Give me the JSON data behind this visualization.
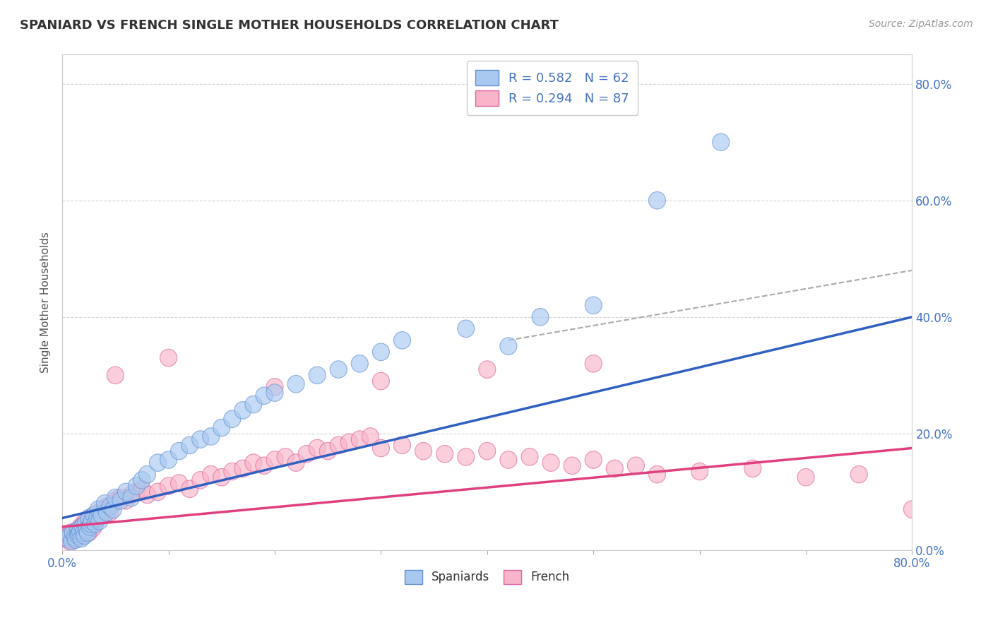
{
  "title": "SPANIARD VS FRENCH SINGLE MOTHER HOUSEHOLDS CORRELATION CHART",
  "source_text": "Source: ZipAtlas.com",
  "ylabel": "Single Mother Households",
  "xlim": [
    0.0,
    0.8
  ],
  "ylim": [
    0.0,
    0.85
  ],
  "spaniards_color": "#A8C8F0",
  "french_color": "#F8B4C8",
  "spaniards_edge_color": "#6090D0",
  "french_edge_color": "#E060A0",
  "spaniards_line_color": "#3060C0",
  "french_line_color": "#E04080",
  "dashed_line_color": "#AAAAAA",
  "legend_R_spaniards": "R = 0.582",
  "legend_N_spaniards": "N = 62",
  "legend_R_french": "R = 0.294",
  "legend_N_french": "N = 87",
  "background_color": "#FFFFFF",
  "grid_color": "#CCCCCC",
  "spaniards_x": [
    0.005,
    0.007,
    0.009,
    0.01,
    0.012,
    0.013,
    0.015,
    0.015,
    0.016,
    0.017,
    0.018,
    0.019,
    0.02,
    0.021,
    0.022,
    0.023,
    0.024,
    0.025,
    0.026,
    0.027,
    0.028,
    0.03,
    0.031,
    0.033,
    0.034,
    0.035,
    0.037,
    0.04,
    0.042,
    0.045,
    0.048,
    0.05,
    0.055,
    0.06,
    0.065,
    0.07,
    0.075,
    0.08,
    0.09,
    0.1,
    0.11,
    0.12,
    0.13,
    0.14,
    0.15,
    0.16,
    0.17,
    0.18,
    0.19,
    0.2,
    0.22,
    0.24,
    0.26,
    0.28,
    0.3,
    0.32,
    0.38,
    0.42,
    0.45,
    0.5,
    0.56,
    0.62
  ],
  "spaniards_y": [
    0.02,
    0.025,
    0.015,
    0.03,
    0.022,
    0.018,
    0.035,
    0.025,
    0.028,
    0.032,
    0.02,
    0.04,
    0.03,
    0.025,
    0.045,
    0.035,
    0.03,
    0.055,
    0.04,
    0.045,
    0.05,
    0.06,
    0.045,
    0.055,
    0.07,
    0.05,
    0.06,
    0.08,
    0.065,
    0.075,
    0.07,
    0.09,
    0.085,
    0.1,
    0.09,
    0.11,
    0.12,
    0.13,
    0.15,
    0.155,
    0.17,
    0.18,
    0.19,
    0.195,
    0.21,
    0.225,
    0.24,
    0.25,
    0.265,
    0.27,
    0.285,
    0.3,
    0.31,
    0.32,
    0.34,
    0.36,
    0.38,
    0.35,
    0.4,
    0.42,
    0.6,
    0.7
  ],
  "french_x": [
    0.003,
    0.005,
    0.007,
    0.008,
    0.009,
    0.01,
    0.011,
    0.012,
    0.013,
    0.014,
    0.015,
    0.016,
    0.017,
    0.018,
    0.019,
    0.02,
    0.021,
    0.022,
    0.023,
    0.024,
    0.025,
    0.026,
    0.027,
    0.028,
    0.029,
    0.03,
    0.032,
    0.034,
    0.035,
    0.037,
    0.04,
    0.042,
    0.045,
    0.048,
    0.05,
    0.055,
    0.06,
    0.065,
    0.07,
    0.075,
    0.08,
    0.09,
    0.1,
    0.11,
    0.12,
    0.13,
    0.14,
    0.15,
    0.16,
    0.17,
    0.18,
    0.19,
    0.2,
    0.21,
    0.22,
    0.23,
    0.24,
    0.25,
    0.26,
    0.27,
    0.28,
    0.29,
    0.3,
    0.32,
    0.34,
    0.36,
    0.38,
    0.4,
    0.42,
    0.44,
    0.46,
    0.48,
    0.5,
    0.52,
    0.54,
    0.56,
    0.6,
    0.65,
    0.7,
    0.75,
    0.8,
    0.05,
    0.1,
    0.2,
    0.3,
    0.4,
    0.5
  ],
  "french_y": [
    0.02,
    0.025,
    0.015,
    0.03,
    0.018,
    0.022,
    0.028,
    0.025,
    0.032,
    0.02,
    0.035,
    0.028,
    0.04,
    0.03,
    0.025,
    0.045,
    0.035,
    0.05,
    0.04,
    0.045,
    0.03,
    0.055,
    0.042,
    0.048,
    0.038,
    0.06,
    0.05,
    0.055,
    0.065,
    0.06,
    0.07,
    0.075,
    0.065,
    0.08,
    0.085,
    0.09,
    0.085,
    0.095,
    0.1,
    0.105,
    0.095,
    0.1,
    0.11,
    0.115,
    0.105,
    0.12,
    0.13,
    0.125,
    0.135,
    0.14,
    0.15,
    0.145,
    0.155,
    0.16,
    0.15,
    0.165,
    0.175,
    0.17,
    0.18,
    0.185,
    0.19,
    0.195,
    0.175,
    0.18,
    0.17,
    0.165,
    0.16,
    0.17,
    0.155,
    0.16,
    0.15,
    0.145,
    0.155,
    0.14,
    0.145,
    0.13,
    0.135,
    0.14,
    0.125,
    0.13,
    0.07,
    0.3,
    0.33,
    0.28,
    0.29,
    0.31,
    0.32
  ],
  "blue_line_x0": 0.0,
  "blue_line_y0": 0.055,
  "blue_line_x1": 0.8,
  "blue_line_y1": 0.4,
  "pink_line_x0": 0.0,
  "pink_line_y0": 0.04,
  "pink_line_x1": 0.8,
  "pink_line_y1": 0.175,
  "dash_line_x0": 0.42,
  "dash_line_y0": 0.36,
  "dash_line_x1": 0.8,
  "dash_line_y1": 0.48
}
